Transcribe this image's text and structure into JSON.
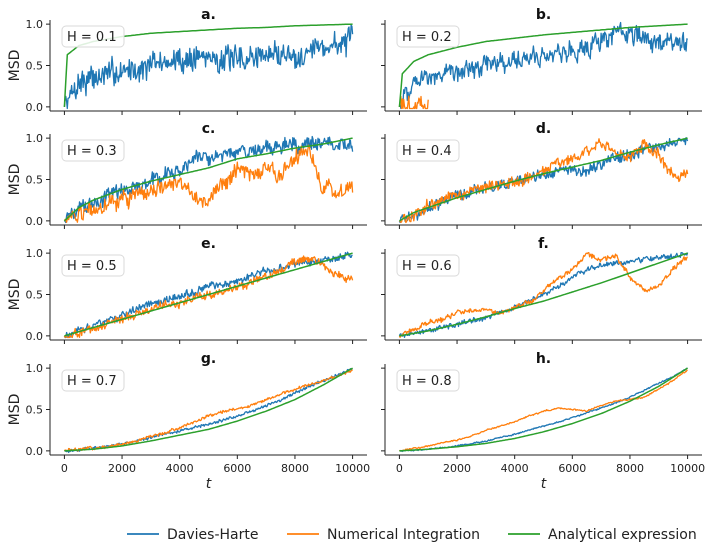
{
  "chart_data": {
    "type": "line",
    "xlabel": "t",
    "ylabel": "MSD",
    "xlim": [
      -500,
      10500
    ],
    "ylim": [
      -0.05,
      1.05
    ],
    "xticks": [
      "0",
      "2000",
      "4000",
      "6000",
      "8000",
      "10000"
    ],
    "yticks": [
      "0.0",
      "0.5",
      "1.0"
    ],
    "legend": {
      "placement": "bottom",
      "entries": [
        "Davies-Harte",
        "Numerical Integration",
        "Analytical expression"
      ]
    },
    "colors": {
      "davies_harte": "#1f77b4",
      "numerical": "#ff7f0e",
      "analytical": "#2ca02c",
      "box_border": "#d9d9d9"
    },
    "panels": [
      {
        "letter": "a.",
        "label": "H = 0.1",
        "H": 0.1,
        "series": [
          {
            "name": "Davies-Harte",
            "x": [
              0,
              500,
              1000,
              1500,
              2000,
              2500,
              3000,
              3500,
              4000,
              4500,
              5000,
              5500,
              6000,
              6500,
              7000,
              7500,
              8000,
              8500,
              9000,
              9500,
              10000
            ],
            "y": [
              0.0,
              0.3,
              0.35,
              0.38,
              0.45,
              0.45,
              0.5,
              0.55,
              0.55,
              0.6,
              0.62,
              0.58,
              0.55,
              0.6,
              0.63,
              0.65,
              0.62,
              0.7,
              0.73,
              0.76,
              0.78
            ]
          },
          {
            "name": "Analytical expression",
            "x": [
              0,
              100,
              500,
              1000,
              2000,
              3000,
              4000,
              5000,
              6000,
              7000,
              8000,
              9000,
              10000
            ],
            "y": [
              0.0,
              0.63,
              0.74,
              0.79,
              0.85,
              0.89,
              0.91,
              0.93,
              0.95,
              0.96,
              0.98,
              0.99,
              1.0
            ]
          }
        ]
      },
      {
        "letter": "b.",
        "label": "H = 0.2",
        "H": 0.2,
        "series": [
          {
            "name": "Davies-Harte",
            "x": [
              0,
              500,
              1000,
              1500,
              2000,
              2500,
              3000,
              3500,
              4000,
              4500,
              5000,
              5500,
              6000,
              6500,
              7000,
              7500,
              8000,
              8500,
              9000,
              9500,
              10000
            ],
            "y": [
              0.0,
              0.3,
              0.35,
              0.38,
              0.42,
              0.48,
              0.5,
              0.55,
              0.55,
              0.6,
              0.62,
              0.65,
              0.68,
              0.72,
              0.8,
              0.88,
              0.9,
              0.8,
              0.78,
              0.8,
              0.78
            ]
          },
          {
            "name": "Numerical Integration",
            "x": [
              0,
              1000
            ],
            "y": [
              0.0,
              0.0
            ]
          },
          {
            "name": "Analytical expression",
            "x": [
              0,
              100,
              500,
              1000,
              2000,
              3000,
              4000,
              5000,
              6000,
              7000,
              8000,
              9000,
              10000
            ],
            "y": [
              0.0,
              0.4,
              0.55,
              0.63,
              0.72,
              0.79,
              0.83,
              0.87,
              0.9,
              0.93,
              0.96,
              0.98,
              1.0
            ]
          }
        ]
      },
      {
        "letter": "c.",
        "label": "H = 0.3",
        "H": 0.3,
        "series": [
          {
            "name": "Davies-Harte",
            "x": [
              0,
              500,
              1000,
              1500,
              2000,
              2500,
              3000,
              3500,
              4000,
              4500,
              5000,
              5500,
              6000,
              6500,
              7000,
              7500,
              8000,
              8500,
              9000,
              9500,
              10000
            ],
            "y": [
              0.0,
              0.15,
              0.22,
              0.3,
              0.35,
              0.42,
              0.5,
              0.55,
              0.6,
              0.7,
              0.78,
              0.82,
              0.82,
              0.85,
              0.88,
              0.88,
              0.92,
              0.95,
              0.95,
              0.92,
              0.85
            ]
          },
          {
            "name": "Numerical Integration",
            "x": [
              0,
              500,
              1000,
              1500,
              2000,
              2500,
              3000,
              3500,
              4000,
              4500,
              5000,
              5500,
              6000,
              6500,
              7000,
              7500,
              8000,
              8500,
              9000,
              9500,
              10000
            ],
            "y": [
              0.0,
              0.1,
              0.15,
              0.2,
              0.25,
              0.3,
              0.35,
              0.42,
              0.45,
              0.3,
              0.2,
              0.45,
              0.6,
              0.55,
              0.62,
              0.55,
              0.8,
              0.85,
              0.4,
              0.32,
              0.45
            ]
          },
          {
            "name": "Analytical expression",
            "x": [
              0,
              500,
              1000,
              2000,
              3000,
              4000,
              5000,
              6000,
              7000,
              8000,
              9000,
              10000
            ],
            "y": [
              0.0,
              0.16,
              0.25,
              0.38,
              0.48,
              0.56,
              0.64,
              0.75,
              0.81,
              0.88,
              0.93,
              1.0
            ]
          }
        ]
      },
      {
        "letter": "d.",
        "label": "H = 0.4",
        "H": 0.4,
        "series": [
          {
            "name": "Davies-Harte",
            "x": [
              0,
              500,
              1000,
              1500,
              2000,
              2500,
              3000,
              3500,
              4000,
              4500,
              5000,
              5500,
              6000,
              6500,
              7000,
              7500,
              8000,
              8500,
              9000,
              9500,
              10000
            ],
            "y": [
              0.0,
              0.08,
              0.15,
              0.22,
              0.3,
              0.35,
              0.4,
              0.43,
              0.48,
              0.52,
              0.57,
              0.6,
              0.6,
              0.62,
              0.7,
              0.75,
              0.8,
              0.85,
              0.9,
              0.95,
              0.98
            ]
          },
          {
            "name": "Numerical Integration",
            "x": [
              0,
              500,
              1000,
              1500,
              2000,
              2500,
              3000,
              3500,
              4000,
              4500,
              5000,
              5500,
              6000,
              6500,
              7000,
              7500,
              8000,
              8500,
              9000,
              9500,
              10000
            ],
            "y": [
              0.0,
              0.06,
              0.18,
              0.25,
              0.32,
              0.38,
              0.4,
              0.43,
              0.45,
              0.5,
              0.6,
              0.7,
              0.75,
              0.85,
              0.92,
              0.82,
              0.78,
              0.92,
              0.8,
              0.55,
              0.55
            ]
          },
          {
            "name": "Analytical expression",
            "x": [
              0,
              500,
              1000,
              2000,
              3000,
              4000,
              5000,
              6000,
              7000,
              8000,
              9000,
              10000
            ],
            "y": [
              0.0,
              0.1,
              0.16,
              0.28,
              0.38,
              0.48,
              0.57,
              0.65,
              0.73,
              0.83,
              0.92,
              1.0
            ]
          }
        ]
      },
      {
        "letter": "e.",
        "label": "H = 0.5",
        "H": 0.5,
        "series": [
          {
            "name": "Davies-Harte",
            "x": [
              0,
              500,
              1000,
              1500,
              2000,
              2500,
              3000,
              3500,
              4000,
              4500,
              5000,
              5500,
              6000,
              6500,
              7000,
              7500,
              8000,
              8500,
              9000,
              9500,
              10000
            ],
            "y": [
              0.0,
              0.05,
              0.12,
              0.18,
              0.25,
              0.32,
              0.38,
              0.42,
              0.48,
              0.52,
              0.6,
              0.63,
              0.68,
              0.72,
              0.78,
              0.82,
              0.85,
              0.88,
              0.92,
              0.95,
              0.98
            ]
          },
          {
            "name": "Numerical Integration",
            "x": [
              0,
              500,
              1000,
              1500,
              2000,
              2500,
              3000,
              3500,
              4000,
              4500,
              5000,
              5500,
              6000,
              6500,
              7000,
              7500,
              8000,
              8500,
              9000,
              9500,
              10000
            ],
            "y": [
              0.0,
              0.04,
              0.08,
              0.15,
              0.2,
              0.26,
              0.32,
              0.38,
              0.38,
              0.45,
              0.5,
              0.55,
              0.58,
              0.65,
              0.72,
              0.8,
              0.9,
              0.95,
              0.85,
              0.72,
              0.65
            ]
          },
          {
            "name": "Analytical expression",
            "x": [
              0,
              10000
            ],
            "y": [
              0.0,
              1.0
            ]
          }
        ]
      },
      {
        "letter": "f.",
        "label": "H = 0.6",
        "H": 0.6,
        "series": [
          {
            "name": "Davies-Harte",
            "x": [
              0,
              500,
              1000,
              1500,
              2000,
              2500,
              3000,
              3500,
              4000,
              4500,
              5000,
              5500,
              6000,
              6500,
              7000,
              7500,
              8000,
              8500,
              9000,
              9500,
              10000
            ],
            "y": [
              0.0,
              0.03,
              0.06,
              0.1,
              0.14,
              0.18,
              0.22,
              0.28,
              0.35,
              0.42,
              0.5,
              0.6,
              0.7,
              0.8,
              0.85,
              0.88,
              0.9,
              0.92,
              0.94,
              0.97,
              0.98
            ]
          },
          {
            "name": "Numerical Integration",
            "x": [
              0,
              500,
              1000,
              1500,
              2000,
              2500,
              3000,
              3500,
              4000,
              4500,
              5000,
              5500,
              6000,
              6500,
              7000,
              7500,
              8000,
              8500,
              9000,
              9500,
              10000
            ],
            "y": [
              0.0,
              0.08,
              0.15,
              0.2,
              0.28,
              0.3,
              0.32,
              0.28,
              0.35,
              0.4,
              0.55,
              0.7,
              0.8,
              0.98,
              0.92,
              0.98,
              0.7,
              0.55,
              0.6,
              0.82,
              0.95
            ]
          },
          {
            "name": "Analytical expression",
            "x": [
              0,
              1000,
              2000,
              3000,
              4000,
              5000,
              6000,
              7000,
              8000,
              9000,
              10000
            ],
            "y": [
              0.0,
              0.06,
              0.14,
              0.23,
              0.33,
              0.42,
              0.53,
              0.64,
              0.76,
              0.88,
              1.0
            ]
          }
        ]
      },
      {
        "letter": "g.",
        "label": "H = 0.7",
        "H": 0.7,
        "series": [
          {
            "name": "Davies-Harte",
            "x": [
              0,
              500,
              1000,
              1500,
              2000,
              2500,
              3000,
              3500,
              4000,
              4500,
              5000,
              5500,
              6000,
              6500,
              7000,
              7500,
              8000,
              8500,
              9000,
              9500,
              10000
            ],
            "y": [
              0.0,
              0.01,
              0.03,
              0.06,
              0.09,
              0.12,
              0.16,
              0.2,
              0.24,
              0.28,
              0.32,
              0.37,
              0.42,
              0.48,
              0.55,
              0.62,
              0.7,
              0.78,
              0.85,
              0.92,
              1.0
            ]
          },
          {
            "name": "Numerical Integration",
            "x": [
              0,
              500,
              1000,
              1500,
              2000,
              2500,
              3000,
              3500,
              4000,
              4500,
              5000,
              5500,
              6000,
              6500,
              7000,
              7500,
              8000,
              8500,
              9000,
              9500,
              10000
            ],
            "y": [
              0.0,
              0.02,
              0.03,
              0.05,
              0.08,
              0.12,
              0.18,
              0.22,
              0.28,
              0.35,
              0.42,
              0.48,
              0.5,
              0.55,
              0.62,
              0.68,
              0.75,
              0.8,
              0.85,
              0.9,
              0.98
            ]
          },
          {
            "name": "Analytical expression",
            "x": [
              0,
              1000,
              2000,
              3000,
              4000,
              5000,
              6000,
              7000,
              8000,
              9000,
              10000
            ],
            "y": [
              0.0,
              0.02,
              0.06,
              0.12,
              0.19,
              0.26,
              0.36,
              0.48,
              0.62,
              0.8,
              1.0
            ]
          }
        ]
      },
      {
        "letter": "h.",
        "label": "H = 0.8",
        "H": 0.8,
        "series": [
          {
            "name": "Davies-Harte",
            "x": [
              0,
              500,
              1000,
              1500,
              2000,
              2500,
              3000,
              3500,
              4000,
              4500,
              5000,
              5500,
              6000,
              6500,
              7000,
              7500,
              8000,
              8500,
              9000,
              9500,
              10000
            ],
            "y": [
              0.0,
              0.01,
              0.02,
              0.04,
              0.06,
              0.09,
              0.12,
              0.16,
              0.2,
              0.25,
              0.3,
              0.35,
              0.4,
              0.46,
              0.52,
              0.58,
              0.65,
              0.73,
              0.82,
              0.9,
              1.0
            ]
          },
          {
            "name": "Numerical Integration",
            "x": [
              0,
              500,
              1000,
              1500,
              2000,
              2500,
              3000,
              3500,
              4000,
              4500,
              5000,
              5500,
              6000,
              6500,
              7000,
              7500,
              8000,
              8500,
              9000,
              9500,
              10000
            ],
            "y": [
              0.0,
              0.03,
              0.06,
              0.1,
              0.13,
              0.18,
              0.25,
              0.3,
              0.35,
              0.42,
              0.48,
              0.52,
              0.5,
              0.48,
              0.55,
              0.6,
              0.62,
              0.65,
              0.75,
              0.85,
              0.98
            ]
          },
          {
            "name": "Analytical expression",
            "x": [
              0,
              1000,
              2000,
              3000,
              4000,
              5000,
              6000,
              7000,
              8000,
              9000,
              10000
            ],
            "y": [
              0.0,
              0.02,
              0.05,
              0.09,
              0.15,
              0.23,
              0.33,
              0.45,
              0.6,
              0.78,
              1.0
            ]
          }
        ]
      }
    ]
  }
}
